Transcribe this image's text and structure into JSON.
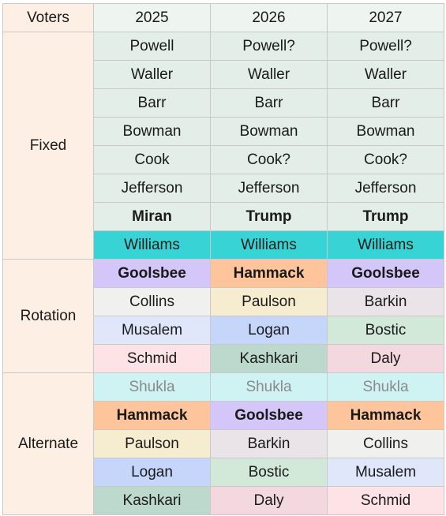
{
  "header": {
    "label": "Voters",
    "years": [
      "2025",
      "2026",
      "2027"
    ]
  },
  "colors": {
    "fixed": "#e3eee9",
    "williams": "#38d3d5",
    "purple": "#d4c6f8",
    "orange": "#fec49b",
    "grey": "#f0f0ee",
    "cream": "#f6eccf",
    "mauve": "#eae4e9",
    "lightblue": "#e0e7fa",
    "blue": "#c6d6fb",
    "green": "#d2e8d8",
    "pink": "#fde3e5",
    "teal": "#bdd9ce",
    "rose": "#f4d8df",
    "cyan": "#cff3f2",
    "label": "#fdefe4",
    "header": "#eef4f0"
  },
  "sections": [
    {
      "label": "Fixed",
      "rows": [
        [
          {
            "text": "Powell",
            "color": "fixed"
          },
          {
            "text": "Powell?",
            "color": "fixed"
          },
          {
            "text": "Powell?",
            "color": "fixed"
          }
        ],
        [
          {
            "text": "Waller",
            "color": "fixed"
          },
          {
            "text": "Waller",
            "color": "fixed"
          },
          {
            "text": "Waller",
            "color": "fixed"
          }
        ],
        [
          {
            "text": "Barr",
            "color": "fixed"
          },
          {
            "text": "Barr",
            "color": "fixed"
          },
          {
            "text": "Barr",
            "color": "fixed"
          }
        ],
        [
          {
            "text": "Bowman",
            "color": "fixed"
          },
          {
            "text": "Bowman",
            "color": "fixed"
          },
          {
            "text": "Bowman",
            "color": "fixed"
          }
        ],
        [
          {
            "text": "Cook",
            "color": "fixed"
          },
          {
            "text": "Cook?",
            "color": "fixed"
          },
          {
            "text": "Cook?",
            "color": "fixed"
          }
        ],
        [
          {
            "text": "Jefferson",
            "color": "fixed"
          },
          {
            "text": "Jefferson",
            "color": "fixed"
          },
          {
            "text": "Jefferson",
            "color": "fixed"
          }
        ],
        [
          {
            "text": "Miran",
            "color": "fixed",
            "bold": true
          },
          {
            "text": "Trump",
            "color": "fixed",
            "bold": true
          },
          {
            "text": "Trump",
            "color": "fixed",
            "bold": true
          }
        ],
        [
          {
            "text": "Williams",
            "color": "williams"
          },
          {
            "text": "Williams",
            "color": "williams"
          },
          {
            "text": "Williams",
            "color": "williams"
          }
        ]
      ]
    },
    {
      "label": "Rotation",
      "rows": [
        [
          {
            "text": "Goolsbee",
            "color": "purple",
            "bold": true
          },
          {
            "text": "Hammack",
            "color": "orange",
            "bold": true
          },
          {
            "text": "Goolsbee",
            "color": "purple",
            "bold": true
          }
        ],
        [
          {
            "text": "Collins",
            "color": "grey"
          },
          {
            "text": "Paulson",
            "color": "cream"
          },
          {
            "text": "Barkin",
            "color": "mauve"
          }
        ],
        [
          {
            "text": "Musalem",
            "color": "lightblue"
          },
          {
            "text": "Logan",
            "color": "blue"
          },
          {
            "text": "Bostic",
            "color": "green"
          }
        ],
        [
          {
            "text": "Schmid",
            "color": "pink"
          },
          {
            "text": "Kashkari",
            "color": "teal"
          },
          {
            "text": "Daly",
            "color": "rose"
          }
        ]
      ]
    },
    {
      "label": "Alternate",
      "rows": [
        [
          {
            "text": "Shukla",
            "color": "cyan",
            "muted": true
          },
          {
            "text": "Shukla",
            "color": "cyan",
            "muted": true
          },
          {
            "text": "Shukla",
            "color": "cyan",
            "muted": true
          }
        ],
        [
          {
            "text": "Hammack",
            "color": "orange",
            "bold": true
          },
          {
            "text": "Goolsbee",
            "color": "purple",
            "bold": true
          },
          {
            "text": "Hammack",
            "color": "orange",
            "bold": true
          }
        ],
        [
          {
            "text": "Paulson",
            "color": "cream"
          },
          {
            "text": "Barkin",
            "color": "mauve"
          },
          {
            "text": "Collins",
            "color": "grey"
          }
        ],
        [
          {
            "text": "Logan",
            "color": "blue"
          },
          {
            "text": "Bostic",
            "color": "green"
          },
          {
            "text": "Musalem",
            "color": "lightblue"
          }
        ],
        [
          {
            "text": "Kashkari",
            "color": "teal"
          },
          {
            "text": "Daly",
            "color": "rose"
          },
          {
            "text": "Schmid",
            "color": "pink"
          }
        ]
      ]
    }
  ]
}
